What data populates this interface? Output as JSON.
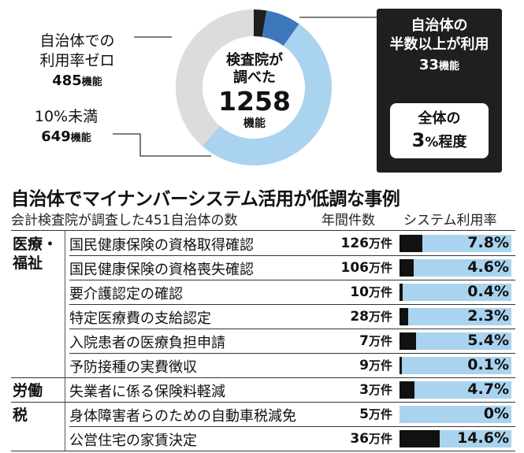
{
  "colors": {
    "zero": "#dcdcdc",
    "under10": "#a9d3ee",
    "mid": "#3d78bd",
    "majority": "#1f1f1f",
    "bar_bg": "#a9d3ee",
    "bar_fill": "#111111"
  },
  "donut": {
    "center_line1": "検査院が",
    "center_line2": "調べた",
    "center_total": "1258",
    "center_unit": "機能",
    "zero_label_1": "自治体での",
    "zero_label_2": "利用率ゼロ",
    "zero_value": "485",
    "under10_label": "10%未満",
    "under10_value": "649",
    "unit": "機能",
    "majority_label_1": "自治体の",
    "majority_label_2": "半数以上が利用",
    "majority_value": "33",
    "callout_1": "全体の",
    "callout_num": "3",
    "callout_pct": "%",
    "callout_rest": "程度"
  },
  "table": {
    "title": "自治体でマイナンバーシステム活用が低調な事例",
    "subtitle": "会計検査院が調査した451自治体の数",
    "col_count": "年間件数",
    "col_rate": "システム利用率",
    "count_unit": "万件",
    "categories": [
      {
        "line1": "医療・",
        "line2": "福祉"
      },
      {
        "line1": "労働",
        "line2": ""
      },
      {
        "line1": "税",
        "line2": ""
      }
    ]
  },
  "chart_data": [
    {
      "type": "pie",
      "title": "",
      "total": 1258,
      "unit": "機能",
      "slices": [
        {
          "name": "利用率ゼロ",
          "value": 485
        },
        {
          "name": "10%未満",
          "value": 649
        },
        {
          "name": "",
          "value": 91
        },
        {
          "name": "半数以上が利用",
          "value": 33
        }
      ]
    },
    {
      "type": "bar",
      "title": "自治体でマイナンバーシステム活用が低調な事例",
      "xlabel": "",
      "ylabel": "システム利用率",
      "xlim": [
        0,
        100
      ],
      "rows": [
        {
          "category": "医療・福祉",
          "name": "国民健康保険の資格取得確認",
          "count": "126",
          "rate": 7.8,
          "rate_label": "7.8%"
        },
        {
          "category": "医療・福祉",
          "name": "国民健康保険の資格喪失確認",
          "count": "106",
          "rate": 4.6,
          "rate_label": "4.6%"
        },
        {
          "category": "医療・福祉",
          "name": "要介護認定の確認",
          "count": "10",
          "rate": 0.4,
          "rate_label": "0.4%"
        },
        {
          "category": "医療・福祉",
          "name": "特定医療費の支給認定",
          "count": "28",
          "rate": 2.3,
          "rate_label": "2.3%"
        },
        {
          "category": "医療・福祉",
          "name": "入院患者の医療負担申請",
          "count": "7",
          "rate": 5.4,
          "rate_label": "5.4%"
        },
        {
          "category": "医療・福祉",
          "name": "予防接種の実費徴収",
          "count": "9",
          "rate": 0.1,
          "rate_label": "0.1%"
        },
        {
          "category": "労働",
          "name": "失業者に係る保険料軽減",
          "count": "3",
          "rate": 4.7,
          "rate_label": "4.7%"
        },
        {
          "category": "税",
          "name": "身体障害者らのための自動車税減免",
          "count": "5",
          "rate": 0,
          "rate_label": "0%"
        },
        {
          "category": "税",
          "name": "公営住宅の家賃決定",
          "count": "36",
          "rate": 14.6,
          "rate_label": "14.6%"
        }
      ]
    }
  ]
}
